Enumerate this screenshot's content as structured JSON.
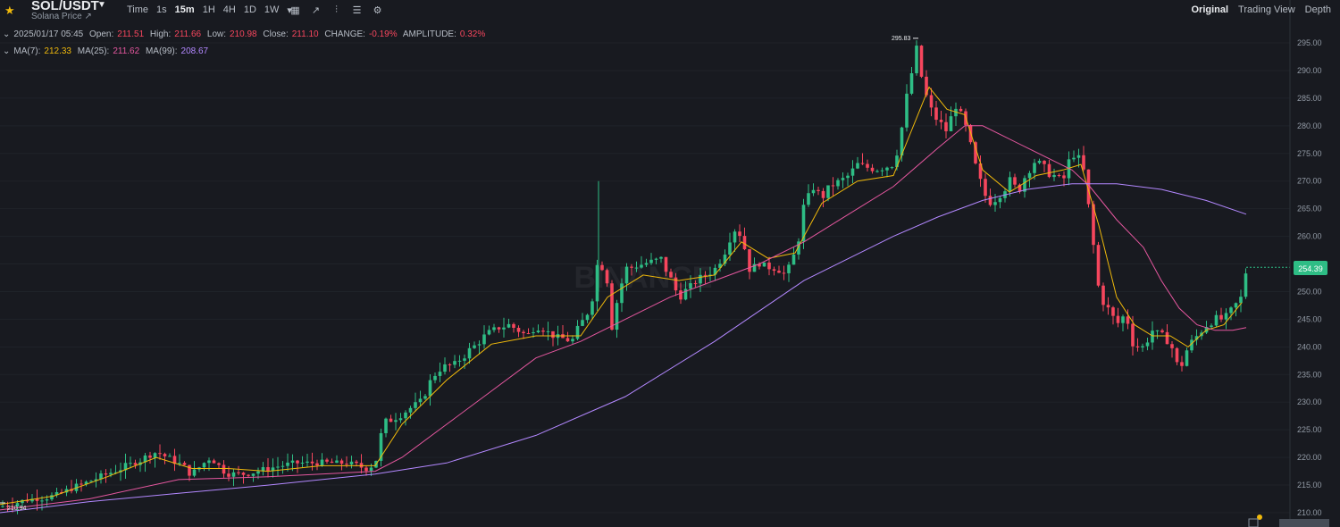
{
  "header": {
    "symbol": "SOL/USDT",
    "subtitle": "Solana Price ↗",
    "intervals": [
      "Time",
      "1s",
      "15m",
      "1H",
      "4H",
      "1D",
      "1W"
    ],
    "active_interval": "15m",
    "views": [
      "Original",
      "Trading View",
      "Depth"
    ],
    "active_view": "Original",
    "icons": [
      "star-icon",
      "caret-down-icon",
      "calendar-icon",
      "draw-icon",
      "indicator-icon",
      "layout-icon",
      "settings-icon"
    ]
  },
  "ohlc": {
    "datetime": "2025/01/17 05:45",
    "open_label": "Open:",
    "open": "211.51",
    "high_label": "High:",
    "high": "211.66",
    "low_label": "Low:",
    "low": "210.98",
    "close_label": "Close:",
    "close": "211.10",
    "change_label": "CHANGE:",
    "change": "-0.19%",
    "amplitude_label": "AMPLITUDE:",
    "amplitude": "0.32%"
  },
  "ma": {
    "ma7_label": "MA(7):",
    "ma7": "212.33",
    "ma25_label": "MA(25):",
    "ma25": "211.62",
    "ma99_label": "MA(99):",
    "ma99": "208.67"
  },
  "colors": {
    "background": "#181a20",
    "up": "#2ebd85",
    "down": "#f6465d",
    "ma7": "#f0b90b",
    "ma25": "#e5579f",
    "ma99": "#b388ff",
    "accent": "#f0b90b"
  },
  "chart_data": {
    "type": "line",
    "yticks": [
      "295.00",
      "290.00",
      "285.00",
      "280.00",
      "275.00",
      "270.00",
      "265.00",
      "260.00",
      "255.00",
      "250.00",
      "245.00",
      "240.00",
      "235.00",
      "230.00",
      "225.00",
      "220.00",
      "215.00",
      "210.00"
    ],
    "ylim": [
      209,
      297.5
    ],
    "watermark": "BINANCE",
    "high_marker": "295.83",
    "low_marker": "210.94",
    "current_price": "254.39",
    "price_series": [
      [
        0,
        211.1
      ],
      [
        30,
        212.3
      ],
      [
        60,
        213
      ],
      [
        90,
        215
      ],
      [
        120,
        217
      ],
      [
        150,
        219
      ],
      [
        175,
        221
      ],
      [
        200,
        219
      ],
      [
        215,
        217
      ],
      [
        235,
        220
      ],
      [
        255,
        217
      ],
      [
        275,
        217
      ],
      [
        300,
        218
      ],
      [
        330,
        219
      ],
      [
        360,
        219
      ],
      [
        390,
        219
      ],
      [
        410,
        218
      ],
      [
        420,
        219
      ],
      [
        430,
        226
      ],
      [
        450,
        228
      ],
      [
        470,
        230
      ],
      [
        490,
        236
      ],
      [
        510,
        237
      ],
      [
        530,
        240
      ],
      [
        550,
        243
      ],
      [
        570,
        244
      ],
      [
        590,
        242
      ],
      [
        600,
        244
      ],
      [
        620,
        242
      ],
      [
        640,
        241
      ],
      [
        660,
        247
      ],
      [
        670,
        256
      ],
      [
        680,
        252
      ],
      [
        685,
        245
      ],
      [
        700,
        254
      ],
      [
        720,
        255
      ],
      [
        740,
        256
      ],
      [
        760,
        249
      ],
      [
        780,
        252
      ],
      [
        800,
        254
      ],
      [
        810,
        257
      ],
      [
        820,
        262
      ],
      [
        830,
        260
      ],
      [
        840,
        254
      ],
      [
        850,
        255
      ],
      [
        870,
        254
      ],
      [
        880,
        253
      ],
      [
        890,
        257
      ],
      [
        900,
        265
      ],
      [
        910,
        269
      ],
      [
        920,
        267
      ],
      [
        930,
        269
      ],
      [
        940,
        270
      ],
      [
        950,
        271
      ],
      [
        960,
        273
      ],
      [
        980,
        272
      ],
      [
        1000,
        273
      ],
      [
        1010,
        280
      ],
      [
        1020,
        289
      ],
      [
        1025,
        294
      ],
      [
        1030,
        290
      ],
      [
        1040,
        283
      ],
      [
        1050,
        281
      ],
      [
        1060,
        279
      ],
      [
        1070,
        284
      ],
      [
        1080,
        280
      ],
      [
        1090,
        273
      ],
      [
        1100,
        268
      ],
      [
        1110,
        266
      ],
      [
        1120,
        268
      ],
      [
        1130,
        270
      ],
      [
        1140,
        268
      ],
      [
        1150,
        272
      ],
      [
        1160,
        274
      ],
      [
        1170,
        272
      ],
      [
        1180,
        271
      ],
      [
        1190,
        270
      ],
      [
        1200,
        275
      ],
      [
        1210,
        274
      ],
      [
        1215,
        270
      ],
      [
        1220,
        262
      ],
      [
        1225,
        257
      ],
      [
        1230,
        250
      ],
      [
        1240,
        247
      ],
      [
        1250,
        244
      ],
      [
        1260,
        246
      ],
      [
        1270,
        240
      ],
      [
        1280,
        240
      ],
      [
        1290,
        243
      ],
      [
        1300,
        242
      ],
      [
        1310,
        241
      ],
      [
        1320,
        235
      ],
      [
        1325,
        238
      ],
      [
        1330,
        240
      ],
      [
        1340,
        242
      ],
      [
        1350,
        244
      ],
      [
        1360,
        245
      ],
      [
        1370,
        245
      ],
      [
        1380,
        247
      ],
      [
        1390,
        249
      ],
      [
        1395,
        254.4
      ]
    ],
    "series": [
      {
        "name": "MA(7)",
        "color": "#f0b90b",
        "points": [
          [
            0,
            211.5
          ],
          [
            60,
            213
          ],
          [
            120,
            216.5
          ],
          [
            175,
            220
          ],
          [
            215,
            218
          ],
          [
            255,
            218
          ],
          [
            300,
            217.5
          ],
          [
            360,
            218.5
          ],
          [
            420,
            218.5
          ],
          [
            450,
            226
          ],
          [
            500,
            234
          ],
          [
            550,
            240.5
          ],
          [
            600,
            242
          ],
          [
            650,
            242
          ],
          [
            680,
            249
          ],
          [
            720,
            253
          ],
          [
            760,
            252
          ],
          [
            800,
            253
          ],
          [
            830,
            259
          ],
          [
            860,
            256
          ],
          [
            890,
            257
          ],
          [
            920,
            266
          ],
          [
            960,
            270
          ],
          [
            1000,
            271
          ],
          [
            1020,
            279
          ],
          [
            1040,
            287
          ],
          [
            1060,
            283
          ],
          [
            1080,
            282
          ],
          [
            1100,
            272
          ],
          [
            1130,
            268
          ],
          [
            1160,
            271
          ],
          [
            1190,
            272
          ],
          [
            1210,
            273
          ],
          [
            1230,
            262
          ],
          [
            1250,
            249
          ],
          [
            1270,
            244
          ],
          [
            1290,
            242
          ],
          [
            1310,
            242
          ],
          [
            1330,
            240
          ],
          [
            1350,
            243
          ],
          [
            1370,
            244
          ],
          [
            1390,
            248
          ]
        ]
      },
      {
        "name": "MA(25)",
        "color": "#e5579f",
        "points": [
          [
            0,
            210.5
          ],
          [
            100,
            212.5
          ],
          [
            200,
            216
          ],
          [
            300,
            216.5
          ],
          [
            420,
            217.5
          ],
          [
            450,
            220
          ],
          [
            500,
            226
          ],
          [
            550,
            232
          ],
          [
            600,
            238
          ],
          [
            650,
            241
          ],
          [
            700,
            245
          ],
          [
            750,
            249
          ],
          [
            800,
            252
          ],
          [
            850,
            255
          ],
          [
            900,
            259
          ],
          [
            950,
            264
          ],
          [
            1000,
            269
          ],
          [
            1050,
            276
          ],
          [
            1080,
            280
          ],
          [
            1100,
            280
          ],
          [
            1150,
            276
          ],
          [
            1200,
            272
          ],
          [
            1220,
            269
          ],
          [
            1250,
            263
          ],
          [
            1280,
            258
          ],
          [
            1300,
            252
          ],
          [
            1320,
            247
          ],
          [
            1340,
            244
          ],
          [
            1360,
            243
          ],
          [
            1380,
            243
          ],
          [
            1395,
            243.5
          ]
        ]
      },
      {
        "name": "MA(99)",
        "color": "#b388ff",
        "points": [
          [
            0,
            210
          ],
          [
            100,
            212
          ],
          [
            200,
            213.5
          ],
          [
            300,
            215
          ],
          [
            420,
            217
          ],
          [
            500,
            219
          ],
          [
            600,
            224
          ],
          [
            700,
            231
          ],
          [
            800,
            241
          ],
          [
            900,
            252
          ],
          [
            1000,
            260
          ],
          [
            1050,
            263.5
          ],
          [
            1100,
            266.5
          ],
          [
            1150,
            268.5
          ],
          [
            1200,
            269.5
          ],
          [
            1250,
            269.5
          ],
          [
            1300,
            268.5
          ],
          [
            1350,
            266.5
          ],
          [
            1395,
            264
          ]
        ]
      }
    ]
  }
}
